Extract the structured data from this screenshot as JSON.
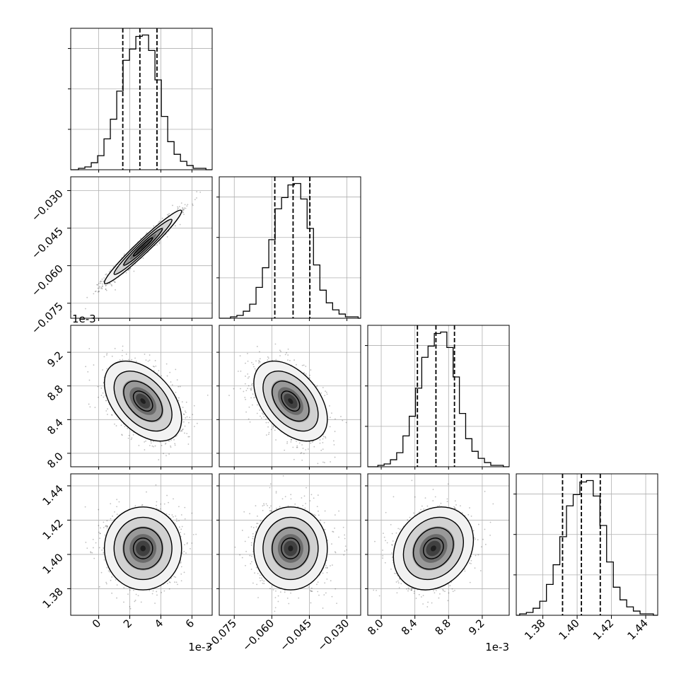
{
  "chart_data": {
    "type": "corner",
    "parameters": [
      {
        "range": [
          -1.8,
          7.3
        ],
        "ticks": [
          0,
          2,
          4,
          6
        ],
        "tick_labels": [
          "0",
          "2",
          "4",
          "6"
        ],
        "offset_label": "1e-3",
        "quantiles": [
          1.55,
          2.65,
          3.75
        ],
        "hist_edges_start": -1.3,
        "hist_bin_width": 0.41,
        "hist_counts": [
          1,
          2,
          5,
          10,
          22,
          36,
          56,
          78,
          86,
          95,
          96,
          85,
          64,
          38,
          20,
          11,
          6,
          3,
          1,
          1
        ]
      },
      {
        "range": [
          -0.081,
          -0.0245
        ],
        "ticks": [
          -0.075,
          -0.06,
          -0.045,
          -0.03
        ],
        "tick_labels": [
          "−0.075",
          "−0.060",
          "−0.045",
          "−0.030"
        ],
        "offset_label": "",
        "quantiles": [
          -0.0588,
          -0.0515,
          -0.0448
        ],
        "hist_edges_start": -0.0765,
        "hist_bin_width": 0.00255,
        "hist_counts": [
          1,
          2,
          5,
          10,
          22,
          36,
          56,
          78,
          86,
          95,
          96,
          85,
          64,
          38,
          20,
          11,
          6,
          3,
          1,
          1
        ]
      },
      {
        "range": [
          7.84,
          9.52
        ],
        "ticks": [
          8.0,
          8.4,
          8.8,
          9.2
        ],
        "tick_labels": [
          "8.0",
          "8.4",
          "8.8",
          "9.2"
        ],
        "offset_label": "1e-3",
        "quantiles": [
          8.43,
          8.65,
          8.87
        ],
        "hist_edges_start": 7.96,
        "hist_bin_width": 0.0745,
        "hist_counts": [
          1,
          2,
          5,
          10,
          22,
          36,
          56,
          78,
          86,
          95,
          96,
          85,
          64,
          38,
          20,
          11,
          6,
          3,
          1,
          1
        ]
      },
      {
        "range": [
          1.3645,
          1.447
        ],
        "ticks": [
          1.38,
          1.4,
          1.42,
          1.44
        ],
        "tick_labels": [
          "1.38",
          "1.40",
          "1.42",
          "1.44"
        ],
        "offset_label": "",
        "quantiles": [
          1.3915,
          1.4025,
          1.4135
        ],
        "hist_edges_start": 1.3665,
        "hist_bin_width": 0.0039,
        "hist_counts": [
          1,
          2,
          5,
          10,
          22,
          36,
          56,
          78,
          86,
          95,
          96,
          85,
          64,
          38,
          20,
          11,
          6,
          3,
          1,
          1
        ]
      }
    ],
    "pairs": [
      {
        "x": 0,
        "y": 1,
        "center": [
          2.85,
          -0.0525
        ],
        "rho": 0.97,
        "spread": [
          1.15,
          0.0068
        ]
      },
      {
        "x": 0,
        "y": 2,
        "center": [
          2.85,
          8.62
        ],
        "rho": -0.45,
        "spread": [
          1.15,
          0.22
        ]
      },
      {
        "x": 1,
        "y": 2,
        "center": [
          -0.0525,
          8.62
        ],
        "rho": -0.45,
        "spread": [
          0.0068,
          0.22
        ]
      },
      {
        "x": 0,
        "y": 3,
        "center": [
          2.85,
          1.4035
        ],
        "rho": 0.0,
        "spread": [
          1.15,
          0.0112
        ]
      },
      {
        "x": 1,
        "y": 3,
        "center": [
          -0.0525,
          1.4035
        ],
        "rho": 0.0,
        "spread": [
          0.0068,
          0.0112
        ]
      },
      {
        "x": 2,
        "y": 3,
        "center": [
          8.62,
          1.4035
        ],
        "rho": 0.2,
        "spread": [
          0.22,
          0.0112
        ]
      }
    ],
    "contour_levels_sigma": [
      0.5,
      1.0,
      1.5,
      2.0
    ],
    "grid": true,
    "colors": {
      "axes": "#000000",
      "grid": "#b0b0b0",
      "density": "#000000",
      "points": "#000000"
    }
  }
}
